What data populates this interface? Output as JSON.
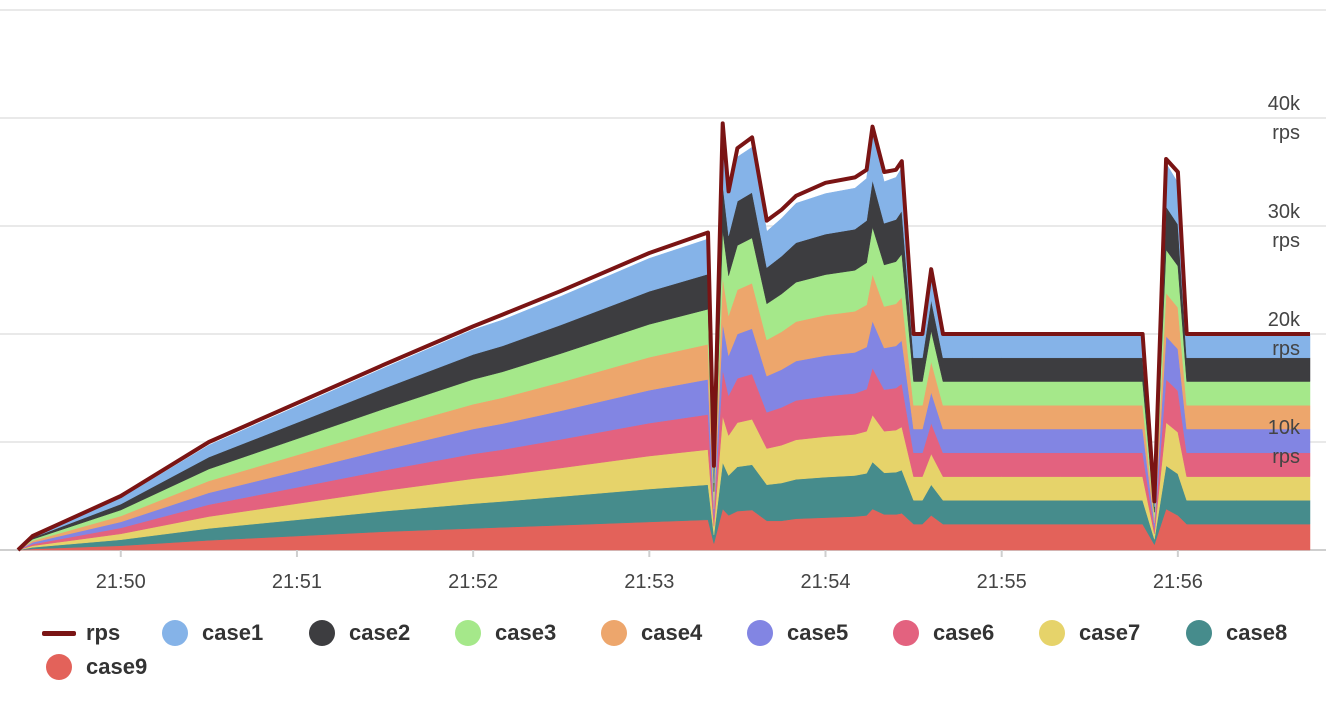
{
  "chart_data": {
    "type": "area",
    "stacked": true,
    "title": "",
    "xlabel": "",
    "ylabel": "",
    "x_ticks": [
      "21:50",
      "21:51",
      "21:52",
      "21:53",
      "21:54",
      "21:55",
      "21:56"
    ],
    "y_ticks": [
      "10k rps",
      "20k rps",
      "30k rps",
      "40k rps"
    ],
    "xlim": [
      "21:49:25",
      "21:56:45"
    ],
    "ylim": [
      0,
      50000
    ],
    "grid": true,
    "legend_position": "bottom-left",
    "x": [
      "21:49:25",
      "21:49:30",
      "21:50:00",
      "21:50:30",
      "21:51:00",
      "21:51:30",
      "21:52:00",
      "21:52:10",
      "21:52:30",
      "21:53:00",
      "21:53:20",
      "21:53:22",
      "21:53:25",
      "21:53:27",
      "21:53:30",
      "21:53:35",
      "21:53:40",
      "21:53:45",
      "21:53:50",
      "21:54:00",
      "21:54:10",
      "21:54:14",
      "21:54:16",
      "21:54:20",
      "21:54:24",
      "21:54:26",
      "21:54:30",
      "21:54:33",
      "21:54:36",
      "21:54:40",
      "21:54:50",
      "21:55:00",
      "21:55:10",
      "21:55:20",
      "21:55:30",
      "21:55:40",
      "21:55:48",
      "21:55:52",
      "21:55:56",
      "21:56:00",
      "21:56:03",
      "21:56:06",
      "21:56:20",
      "21:56:45"
    ],
    "series": [
      {
        "name": "rps",
        "type": "line",
        "color": "#7a1414",
        "values": [
          0,
          1300,
          5000,
          10000,
          13600,
          17200,
          20700,
          21800,
          24000,
          27500,
          29400,
          7800,
          39500,
          33200,
          37200,
          38200,
          30500,
          31500,
          32800,
          34000,
          34500,
          35200,
          39200,
          35000,
          35200,
          36000,
          20000,
          20000,
          26000,
          20000,
          20000,
          20000,
          20000,
          20000,
          20000,
          20000,
          20000,
          4500,
          36200,
          35000,
          20000,
          20000,
          20000,
          20000
        ]
      },
      {
        "name": "case1",
        "color": "#85b3e8",
        "values": [
          0,
          150,
          550,
          1100,
          1500,
          1900,
          2300,
          2400,
          2650,
          3050,
          3250,
          800,
          4300,
          3700,
          4100,
          4200,
          3350,
          3500,
          3650,
          3750,
          3800,
          3900,
          4350,
          3850,
          3900,
          4000,
          2200,
          2200,
          2850,
          2200,
          2200,
          2200,
          2200,
          2200,
          2200,
          2200,
          2200,
          500,
          4000,
          3850,
          2200,
          2200,
          2200,
          2200
        ]
      },
      {
        "name": "case2",
        "color": "#3d3d40",
        "values": [
          0,
          150,
          550,
          1100,
          1500,
          1900,
          2300,
          2400,
          2650,
          3050,
          3250,
          800,
          4300,
          3700,
          4100,
          4200,
          3350,
          3500,
          3650,
          3750,
          3800,
          3900,
          4350,
          3850,
          3900,
          4000,
          2200,
          2200,
          2850,
          2200,
          2200,
          2200,
          2200,
          2200,
          2200,
          2200,
          2200,
          500,
          4000,
          3850,
          2200,
          2200,
          2200,
          2200
        ]
      },
      {
        "name": "case3",
        "color": "#a5e88a",
        "values": [
          0,
          150,
          550,
          1100,
          1500,
          1900,
          2300,
          2400,
          2650,
          3050,
          3250,
          800,
          4300,
          3700,
          4100,
          4200,
          3350,
          3500,
          3650,
          3750,
          3800,
          3900,
          4350,
          3850,
          3900,
          4000,
          2200,
          2200,
          2850,
          2200,
          2200,
          2200,
          2200,
          2200,
          2200,
          2200,
          2200,
          500,
          4000,
          3850,
          2200,
          2200,
          2200,
          2200
        ]
      },
      {
        "name": "case4",
        "color": "#eda66c",
        "values": [
          0,
          150,
          550,
          1100,
          1500,
          1900,
          2300,
          2400,
          2650,
          3050,
          3250,
          800,
          4300,
          3700,
          4100,
          4200,
          3350,
          3500,
          3650,
          3750,
          3800,
          3900,
          4350,
          3850,
          3900,
          4000,
          2200,
          2200,
          2850,
          2200,
          2200,
          2200,
          2200,
          2200,
          2200,
          2200,
          2200,
          500,
          4000,
          3850,
          2200,
          2200,
          2200,
          2200
        ]
      },
      {
        "name": "case5",
        "color": "#8285e3",
        "values": [
          0,
          150,
          550,
          1100,
          1500,
          1900,
          2300,
          2400,
          2650,
          3050,
          3250,
          800,
          4300,
          3700,
          4100,
          4200,
          3350,
          3500,
          3650,
          3750,
          3800,
          3900,
          4350,
          3850,
          3900,
          4000,
          2200,
          2200,
          2850,
          2200,
          2200,
          2200,
          2200,
          2200,
          2200,
          2200,
          2200,
          500,
          4000,
          3850,
          2200,
          2200,
          2200,
          2200
        ]
      },
      {
        "name": "case6",
        "color": "#e3627f",
        "values": [
          0,
          150,
          550,
          1100,
          1500,
          1900,
          2300,
          2400,
          2650,
          3050,
          3250,
          800,
          4300,
          3700,
          4100,
          4200,
          3350,
          3500,
          3650,
          3750,
          3800,
          3900,
          4350,
          3850,
          3900,
          4000,
          2200,
          2200,
          2850,
          2200,
          2200,
          2200,
          2200,
          2200,
          2200,
          2200,
          2200,
          500,
          4000,
          3850,
          2200,
          2200,
          2200,
          2200
        ]
      },
      {
        "name": "case7",
        "color": "#e6d36a",
        "values": [
          0,
          150,
          550,
          1100,
          1500,
          1900,
          2300,
          2400,
          2650,
          3050,
          3250,
          800,
          4300,
          3700,
          4100,
          4200,
          3350,
          3500,
          3650,
          3750,
          3800,
          3900,
          4350,
          3850,
          3900,
          4000,
          2200,
          2200,
          2850,
          2200,
          2200,
          2200,
          2200,
          2200,
          2200,
          2200,
          2200,
          500,
          4000,
          3850,
          2200,
          2200,
          2200,
          2200
        ]
      },
      {
        "name": "case8",
        "color": "#468c8c",
        "values": [
          0,
          150,
          550,
          1100,
          1500,
          1900,
          2300,
          2400,
          2650,
          3050,
          3250,
          800,
          4300,
          3700,
          4100,
          4200,
          3350,
          3500,
          3650,
          3750,
          3800,
          3900,
          4350,
          3850,
          3900,
          4000,
          2200,
          2200,
          2850,
          2200,
          2200,
          2200,
          2200,
          2200,
          2200,
          2200,
          2200,
          500,
          4000,
          3850,
          2200,
          2200,
          2200,
          2200
        ]
      },
      {
        "name": "case9",
        "color": "#e3625a",
        "values": [
          0,
          100,
          400,
          900,
          1300,
          1700,
          2000,
          2100,
          2300,
          2600,
          2800,
          600,
          3800,
          3200,
          3600,
          3700,
          2700,
          2700,
          2900,
          3000,
          3100,
          3200,
          3800,
          3300,
          3300,
          3400,
          2400,
          2400,
          3200,
          2400,
          2400,
          2400,
          2400,
          2400,
          2400,
          2400,
          2400,
          500,
          3800,
          3200,
          2400,
          2400,
          2400,
          2400
        ]
      }
    ]
  }
}
